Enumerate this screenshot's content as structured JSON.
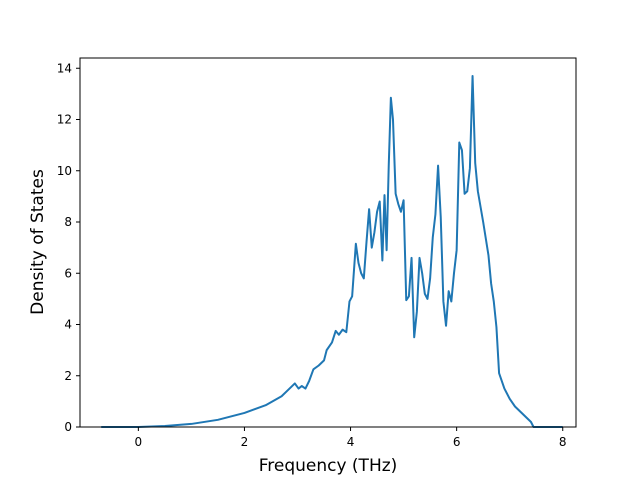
{
  "chart_data": {
    "type": "line",
    "title": "",
    "xlabel": "Frequency (THz)",
    "ylabel": "Density of States",
    "xlim": [
      -1.1,
      8.25
    ],
    "ylim": [
      0,
      14.4
    ],
    "xticks": [
      0,
      2,
      4,
      6,
      8
    ],
    "yticks": [
      0,
      2,
      4,
      6,
      8,
      10,
      12,
      14
    ],
    "grid": false,
    "legend": "none",
    "series": [
      {
        "color": "#1f77b4",
        "points": [
          [
            -0.7,
            0.0
          ],
          [
            0.0,
            0.0
          ],
          [
            0.5,
            0.04
          ],
          [
            1.0,
            0.12
          ],
          [
            1.5,
            0.28
          ],
          [
            2.0,
            0.55
          ],
          [
            2.4,
            0.85
          ],
          [
            2.7,
            1.2
          ],
          [
            2.85,
            1.5
          ],
          [
            2.95,
            1.7
          ],
          [
            3.02,
            1.5
          ],
          [
            3.08,
            1.6
          ],
          [
            3.15,
            1.5
          ],
          [
            3.22,
            1.8
          ],
          [
            3.3,
            2.25
          ],
          [
            3.4,
            2.4
          ],
          [
            3.5,
            2.6
          ],
          [
            3.55,
            3.0
          ],
          [
            3.65,
            3.3
          ],
          [
            3.72,
            3.75
          ],
          [
            3.78,
            3.6
          ],
          [
            3.85,
            3.8
          ],
          [
            3.92,
            3.7
          ],
          [
            3.98,
            4.9
          ],
          [
            4.03,
            5.1
          ],
          [
            4.1,
            7.15
          ],
          [
            4.15,
            6.4
          ],
          [
            4.2,
            6.0
          ],
          [
            4.25,
            5.8
          ],
          [
            4.3,
            7.2
          ],
          [
            4.35,
            8.5
          ],
          [
            4.4,
            7.0
          ],
          [
            4.45,
            7.6
          ],
          [
            4.5,
            8.4
          ],
          [
            4.55,
            8.8
          ],
          [
            4.6,
            6.5
          ],
          [
            4.64,
            9.05
          ],
          [
            4.68,
            6.9
          ],
          [
            4.72,
            10.2
          ],
          [
            4.76,
            12.85
          ],
          [
            4.8,
            12.0
          ],
          [
            4.85,
            9.1
          ],
          [
            4.9,
            8.7
          ],
          [
            4.95,
            8.4
          ],
          [
            5.0,
            8.85
          ],
          [
            5.05,
            4.95
          ],
          [
            5.1,
            5.1
          ],
          [
            5.15,
            6.6
          ],
          [
            5.2,
            3.5
          ],
          [
            5.25,
            4.5
          ],
          [
            5.3,
            6.6
          ],
          [
            5.35,
            6.0
          ],
          [
            5.4,
            5.2
          ],
          [
            5.45,
            5.0
          ],
          [
            5.5,
            5.8
          ],
          [
            5.55,
            7.4
          ],
          [
            5.6,
            8.3
          ],
          [
            5.65,
            10.2
          ],
          [
            5.7,
            8.2
          ],
          [
            5.75,
            4.9
          ],
          [
            5.8,
            3.95
          ],
          [
            5.85,
            5.3
          ],
          [
            5.9,
            4.9
          ],
          [
            5.95,
            6.0
          ],
          [
            6.0,
            6.9
          ],
          [
            6.05,
            11.1
          ],
          [
            6.1,
            10.8
          ],
          [
            6.15,
            9.1
          ],
          [
            6.2,
            9.2
          ],
          [
            6.25,
            10.1
          ],
          [
            6.3,
            13.7
          ],
          [
            6.35,
            10.3
          ],
          [
            6.4,
            9.2
          ],
          [
            6.5,
            8.0
          ],
          [
            6.6,
            6.7
          ],
          [
            6.65,
            5.6
          ],
          [
            6.7,
            4.9
          ],
          [
            6.75,
            3.9
          ],
          [
            6.8,
            2.1
          ],
          [
            6.9,
            1.5
          ],
          [
            7.0,
            1.1
          ],
          [
            7.1,
            0.8
          ],
          [
            7.2,
            0.6
          ],
          [
            7.3,
            0.4
          ],
          [
            7.4,
            0.2
          ],
          [
            7.45,
            0.0
          ],
          [
            8.0,
            0.0
          ]
        ]
      }
    ]
  }
}
